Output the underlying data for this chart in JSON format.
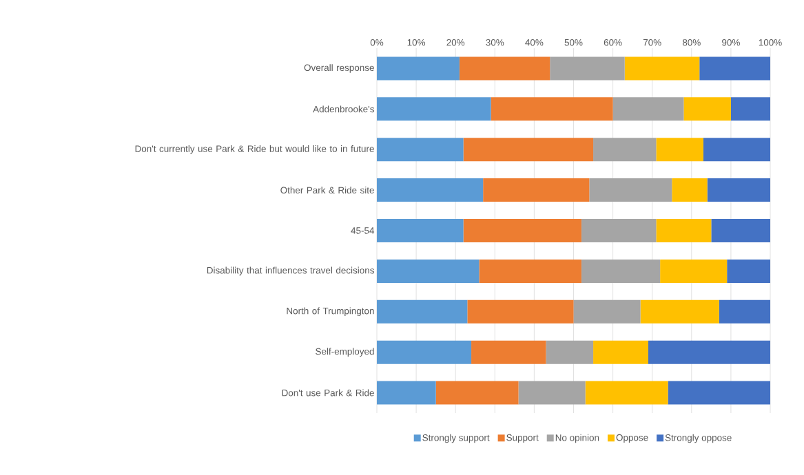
{
  "chart_data": {
    "type": "bar",
    "orientation": "horizontal",
    "stacked": true,
    "categories": [
      "Overall response",
      "Addenbrooke's",
      "Don't currently use Park & Ride but would like to in future",
      "Other Park & Ride site",
      "45-54",
      "Disability that influences travel decisions",
      "North of Trumpington",
      "Self-employed",
      "Don't use Park & Ride"
    ],
    "series": [
      {
        "name": "Strongly support",
        "color": "#5b9bd5",
        "values": [
          21,
          29,
          22,
          27,
          22,
          26,
          23,
          24,
          15
        ]
      },
      {
        "name": "Support",
        "color": "#ed7d31",
        "values": [
          23,
          31,
          33,
          27,
          30,
          26,
          27,
          19,
          21
        ]
      },
      {
        "name": "No opinion",
        "color": "#a5a5a5",
        "values": [
          19,
          18,
          16,
          21,
          19,
          20,
          17,
          12,
          17
        ]
      },
      {
        "name": "Oppose",
        "color": "#ffc000",
        "values": [
          19,
          12,
          12,
          9,
          14,
          17,
          20,
          14,
          21
        ]
      },
      {
        "name": "Strongly oppose",
        "color": "#4472c4",
        "values": [
          18,
          10,
          17,
          16,
          15,
          11,
          13,
          31,
          26
        ]
      }
    ],
    "xlim": [
      0,
      100
    ],
    "xticks": [
      {
        "value": 0,
        "label": "0%"
      },
      {
        "value": 10,
        "label": "10%"
      },
      {
        "value": 20,
        "label": "20%"
      },
      {
        "value": 30,
        "label": "30%"
      },
      {
        "value": 40,
        "label": "40%"
      },
      {
        "value": 50,
        "label": "50%"
      },
      {
        "value": 60,
        "label": "60%"
      },
      {
        "value": 70,
        "label": "70%"
      },
      {
        "value": 80,
        "label": "80%"
      },
      {
        "value": 90,
        "label": "90%"
      },
      {
        "value": 100,
        "label": "100%"
      }
    ],
    "grid": "x",
    "legend": "bottom"
  }
}
